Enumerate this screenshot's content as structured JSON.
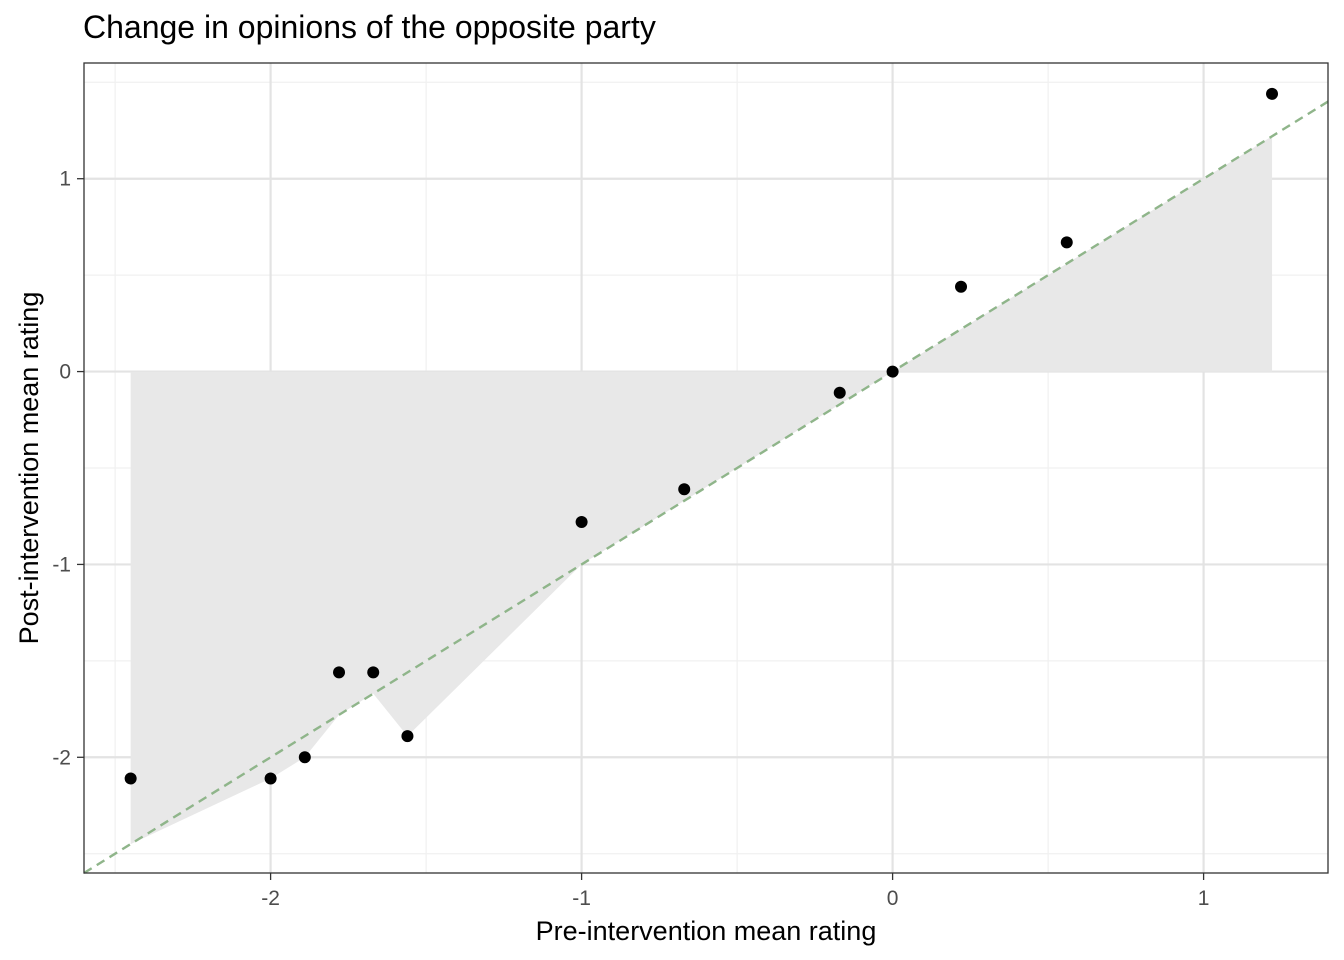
{
  "chart_data": {
    "type": "scatter",
    "title": "Change in opinions of the opposite party",
    "xlabel": "Pre-intervention mean rating",
    "ylabel": "Post-intervention mean rating",
    "xlim": [
      -2.6,
      1.4
    ],
    "ylim": [
      -2.6,
      1.6
    ],
    "x_ticks": [
      {
        "value": -2,
        "label": "-2"
      },
      {
        "value": -1,
        "label": "-1"
      },
      {
        "value": 0,
        "label": "0"
      },
      {
        "value": 1,
        "label": "1"
      }
    ],
    "y_ticks": [
      {
        "value": -2,
        "label": "-2"
      },
      {
        "value": -1,
        "label": "-1"
      },
      {
        "value": 0,
        "label": "0"
      },
      {
        "value": 1,
        "label": "1"
      }
    ],
    "grid": true,
    "reference_line": {
      "slope": 1,
      "intercept": 0,
      "style": "dashed",
      "color": "#8fb58a"
    },
    "shaded_region": {
      "color": "#e8e8e8",
      "baseline": 0
    },
    "series": [
      {
        "points": [
          {
            "x": -2.45,
            "y": -2.11
          },
          {
            "x": -2.0,
            "y": -2.11
          },
          {
            "x": -1.89,
            "y": -2.0
          },
          {
            "x": -1.78,
            "y": -1.56
          },
          {
            "x": -1.67,
            "y": -1.56
          },
          {
            "x": -1.56,
            "y": -1.89
          },
          {
            "x": -1.0,
            "y": -0.78
          },
          {
            "x": -0.67,
            "y": -0.61
          },
          {
            "x": -0.17,
            "y": -0.11
          },
          {
            "x": 0.0,
            "y": 0.0
          },
          {
            "x": 0.22,
            "y": 0.44
          },
          {
            "x": 0.56,
            "y": 0.67
          },
          {
            "x": 1.22,
            "y": 1.44
          }
        ]
      }
    ]
  }
}
